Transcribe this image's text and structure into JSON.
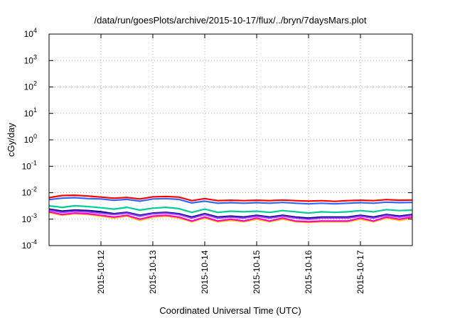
{
  "chart_data": {
    "type": "line",
    "title": "/data/run/goesPlots/archive/2015-10-17/flux/../bryn/7daysMars.plot",
    "xlabel": "Coordinated Universal Time (UTC)",
    "ylabel": "cGy/day",
    "yscale": "log",
    "ylim": [
      0.0001,
      10000
    ],
    "yticks": [
      {
        "base": "10",
        "exp": "-4",
        "value": 0.0001
      },
      {
        "base": "10",
        "exp": "-3",
        "value": 0.001
      },
      {
        "base": "10",
        "exp": "-2",
        "value": 0.01
      },
      {
        "base": "10",
        "exp": "-1",
        "value": 0.1
      },
      {
        "base": "10",
        "exp": "0",
        "value": 1
      },
      {
        "base": "10",
        "exp": "1",
        "value": 10
      },
      {
        "base": "10",
        "exp": "2",
        "value": 100
      },
      {
        "base": "10",
        "exp": "3",
        "value": 1000
      },
      {
        "base": "10",
        "exp": "4",
        "value": 10000
      }
    ],
    "xlim": [
      "2015-10-11 00:00",
      "2015-10-18 00:00"
    ],
    "xticks": [
      "2015-10-12",
      "2015-10-13",
      "2015-10-14",
      "2015-10-15",
      "2015-10-16",
      "2015-10-17"
    ],
    "grid": true,
    "x": [
      "2015-10-11 00:00",
      "2015-10-11 06:00",
      "2015-10-11 12:00",
      "2015-10-11 18:00",
      "2015-10-12 00:00",
      "2015-10-12 06:00",
      "2015-10-12 12:00",
      "2015-10-12 18:00",
      "2015-10-13 00:00",
      "2015-10-13 06:00",
      "2015-10-13 12:00",
      "2015-10-13 18:00",
      "2015-10-14 00:00",
      "2015-10-14 06:00",
      "2015-10-14 12:00",
      "2015-10-14 18:00",
      "2015-10-15 00:00",
      "2015-10-15 06:00",
      "2015-10-15 12:00",
      "2015-10-15 18:00",
      "2015-10-16 00:00",
      "2015-10-16 06:00",
      "2015-10-16 12:00",
      "2015-10-16 18:00",
      "2015-10-17 00:00",
      "2015-10-17 06:00",
      "2015-10-17 12:00",
      "2015-10-17 18:00",
      "2015-10-18 00:00"
    ],
    "series": [
      {
        "color": "#ff0000",
        "values": [
          0.0065,
          0.0078,
          0.008,
          0.0075,
          0.0068,
          0.0062,
          0.0066,
          0.0058,
          0.007,
          0.0072,
          0.0068,
          0.005,
          0.006,
          0.005,
          0.0052,
          0.005,
          0.0052,
          0.005,
          0.0053,
          0.005,
          0.0048,
          0.005,
          0.0047,
          0.005,
          0.0052,
          0.005,
          0.0055,
          0.0052,
          0.0053
        ]
      },
      {
        "color": "#3366ff",
        "values": [
          0.0055,
          0.0062,
          0.0065,
          0.006,
          0.0058,
          0.0052,
          0.0056,
          0.0048,
          0.0058,
          0.006,
          0.0056,
          0.0041,
          0.0048,
          0.004,
          0.0042,
          0.004,
          0.0042,
          0.004,
          0.0043,
          0.004,
          0.0038,
          0.004,
          0.0038,
          0.004,
          0.0042,
          0.004,
          0.0044,
          0.0042,
          0.0043
        ]
      },
      {
        "color": "#00cc99",
        "values": [
          0.0032,
          0.0028,
          0.0032,
          0.003,
          0.0027,
          0.0024,
          0.0028,
          0.0022,
          0.0026,
          0.0028,
          0.0025,
          0.0018,
          0.0024,
          0.0018,
          0.002,
          0.0019,
          0.002,
          0.0018,
          0.0021,
          0.0019,
          0.0017,
          0.0019,
          0.0018,
          0.0019,
          0.0021,
          0.0019,
          0.0023,
          0.0021,
          0.0022
        ]
      },
      {
        "color": "#000080",
        "values": [
          0.0024,
          0.002,
          0.0022,
          0.0021,
          0.0019,
          0.0016,
          0.0018,
          0.0014,
          0.0017,
          0.0018,
          0.0016,
          0.0012,
          0.0016,
          0.0012,
          0.0013,
          0.0012,
          0.0014,
          0.0012,
          0.0014,
          0.0012,
          0.0011,
          0.0012,
          0.0012,
          0.0012,
          0.0014,
          0.0012,
          0.0015,
          0.0013,
          0.0015
        ]
      },
      {
        "color": "#9933ff",
        "values": [
          0.0022,
          0.0018,
          0.002,
          0.0019,
          0.0017,
          0.0015,
          0.0017,
          0.0013,
          0.0016,
          0.0017,
          0.0015,
          0.0011,
          0.0015,
          0.0011,
          0.0012,
          0.0011,
          0.0013,
          0.0011,
          0.0013,
          0.0011,
          0.001,
          0.0011,
          0.0011,
          0.0011,
          0.0013,
          0.0011,
          0.0014,
          0.0012,
          0.0014
        ]
      },
      {
        "color": "#ffcc00",
        "values": [
          0.0018,
          0.0014,
          0.0016,
          0.0015,
          0.0013,
          0.0011,
          0.0013,
          0.0009,
          0.0012,
          0.0013,
          0.0011,
          0.0008,
          0.0011,
          0.0008,
          0.0009,
          0.0008,
          0.001,
          0.0008,
          0.001,
          0.0008,
          0.00075,
          0.0008,
          0.0008,
          0.0008,
          0.001,
          0.0008,
          0.0011,
          0.0009,
          0.0011
        ]
      },
      {
        "color": "#ff00cc",
        "values": [
          0.0019,
          0.0015,
          0.0017,
          0.0016,
          0.0014,
          0.0012,
          0.0014,
          0.001,
          0.0013,
          0.0014,
          0.0012,
          0.00085,
          0.0012,
          0.00085,
          0.001,
          0.00085,
          0.0011,
          0.00085,
          0.0011,
          0.00085,
          0.0008,
          0.00085,
          0.00085,
          0.00085,
          0.0011,
          0.00085,
          0.0012,
          0.001,
          0.0012
        ]
      }
    ]
  }
}
